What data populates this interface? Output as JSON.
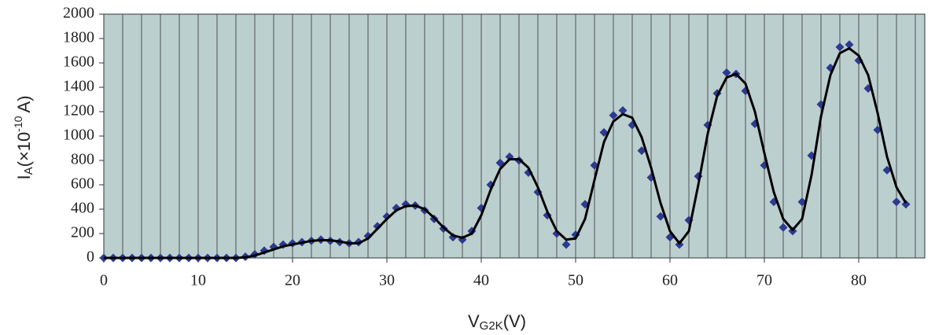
{
  "chart_data": {
    "type": "scatter",
    "x_label": [
      "V",
      "G2K",
      "(V)"
    ],
    "y_label": [
      "I",
      "A",
      "(×10",
      "-10",
      "A)"
    ],
    "x": [
      0,
      1,
      2,
      3,
      4,
      5,
      6,
      7,
      8,
      9,
      10,
      11,
      12,
      13,
      14,
      15,
      16,
      17,
      18,
      19,
      20,
      21,
      22,
      23,
      24,
      25,
      26,
      27,
      28,
      29,
      30,
      31,
      32,
      33,
      34,
      35,
      36,
      37,
      38,
      39,
      40,
      41,
      42,
      43,
      44,
      45,
      46,
      47,
      48,
      49,
      50,
      51,
      52,
      53,
      54,
      55,
      56,
      57,
      58,
      59,
      60,
      61,
      62,
      63,
      64,
      65,
      66,
      67,
      68,
      69,
      70,
      71,
      72,
      73,
      74,
      75,
      76,
      77,
      78,
      79,
      80,
      81,
      82,
      83,
      84,
      85
    ],
    "series": [
      {
        "style": "marker",
        "color": "#2c3a8f",
        "values": [
          0,
          0,
          0,
          0,
          0,
          0,
          0,
          0,
          0,
          0,
          0,
          0,
          0,
          0,
          0,
          10,
          30,
          60,
          90,
          110,
          120,
          130,
          140,
          150,
          140,
          130,
          120,
          130,
          180,
          260,
          340,
          410,
          440,
          430,
          390,
          320,
          240,
          170,
          150,
          220,
          410,
          600,
          780,
          830,
          800,
          700,
          540,
          350,
          200,
          110,
          190,
          440,
          760,
          1030,
          1170,
          1210,
          1090,
          880,
          660,
          340,
          170,
          110,
          310,
          670,
          1090,
          1350,
          1520,
          1510,
          1370,
          1100,
          760,
          460,
          250,
          220,
          460,
          840,
          1260,
          1560,
          1730,
          1750,
          1620,
          1390,
          1050,
          720,
          460,
          440
        ]
      },
      {
        "style": "line",
        "color": "#000000",
        "values": [
          0,
          0,
          0,
          0,
          0,
          0,
          0,
          0,
          0,
          0,
          0,
          0,
          0,
          0,
          0,
          5,
          20,
          45,
          70,
          95,
          110,
          125,
          140,
          145,
          145,
          135,
          120,
          120,
          160,
          240,
          320,
          390,
          425,
          430,
          400,
          330,
          250,
          185,
          165,
          200,
          350,
          560,
          730,
          810,
          810,
          740,
          580,
          380,
          220,
          150,
          160,
          320,
          640,
          950,
          1120,
          1180,
          1150,
          990,
          740,
          450,
          220,
          120,
          220,
          600,
          1020,
          1330,
          1480,
          1510,
          1430,
          1200,
          860,
          540,
          320,
          230,
          320,
          680,
          1160,
          1500,
          1680,
          1720,
          1660,
          1500,
          1190,
          830,
          580,
          450
        ]
      }
    ],
    "xlim": [
      0,
      87
    ],
    "xticks": [
      0,
      10,
      20,
      30,
      40,
      50,
      60,
      70,
      80
    ],
    "xgrid_step": 2,
    "ylim": [
      0,
      2000
    ],
    "yticks": [
      0,
      200,
      400,
      600,
      800,
      1000,
      1200,
      1400,
      1600,
      1800,
      2000
    ],
    "plot_color": "#bccfcf"
  }
}
